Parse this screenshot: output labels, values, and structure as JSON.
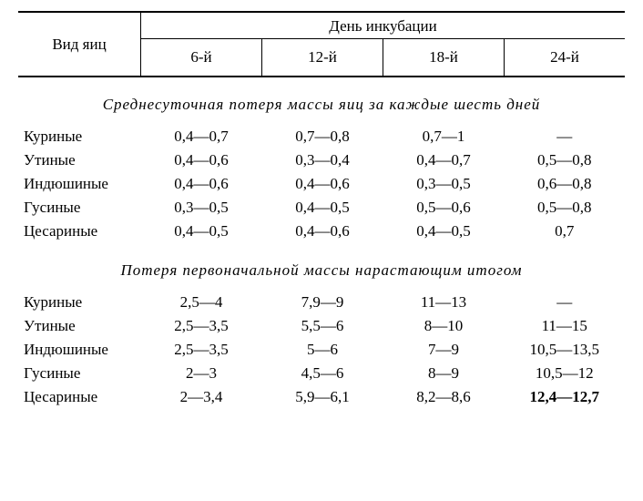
{
  "header": {
    "row_label": "Вид яиц",
    "group_label": "День инкубации",
    "days": [
      "6-й",
      "12-й",
      "18-й",
      "24-й"
    ]
  },
  "sections": [
    {
      "title": "Среднесуточная потеря массы яиц за каждые шесть дней",
      "rows": [
        {
          "label": "Куриные",
          "v": [
            "0,4—0,7",
            "0,7—0,8",
            "0,7—1",
            "—"
          ]
        },
        {
          "label": "Утиные",
          "v": [
            "0,4—0,6",
            "0,3—0,4",
            "0,4—0,7",
            "0,5—0,8"
          ]
        },
        {
          "label": "Индюшиные",
          "v": [
            "0,4—0,6",
            "0,4—0,6",
            "0,3—0,5",
            "0,6—0,8"
          ]
        },
        {
          "label": "Гусиные",
          "v": [
            "0,3—0,5",
            "0,4—0,5",
            "0,5—0,6",
            "0,5—0,8"
          ]
        },
        {
          "label": "Цесариные",
          "v": [
            "0,4—0,5",
            "0,4—0,6",
            "0,4—0,5",
            "0,7"
          ]
        }
      ]
    },
    {
      "title": "Потеря первоначальной массы нарастающим итогом",
      "rows": [
        {
          "label": "Куриные",
          "v": [
            "2,5—4",
            "7,9—9",
            "11—13",
            "—"
          ]
        },
        {
          "label": "Утиные",
          "v": [
            "2,5—3,5",
            "5,5—6",
            "8—10",
            "11—15"
          ]
        },
        {
          "label": "Индюшиные",
          "v": [
            "2,5—3,5",
            "5—6",
            "7—9",
            "10,5—13,5"
          ]
        },
        {
          "label": "Гусиные",
          "v": [
            "2—3",
            "4,5—6",
            "8—9",
            "10,5—12"
          ]
        },
        {
          "label": "Цесариные",
          "v": [
            "2—3,4",
            "5,9—6,1",
            "8,2—8,6",
            "12,4—12,7"
          ],
          "bold_last": true
        }
      ]
    }
  ]
}
